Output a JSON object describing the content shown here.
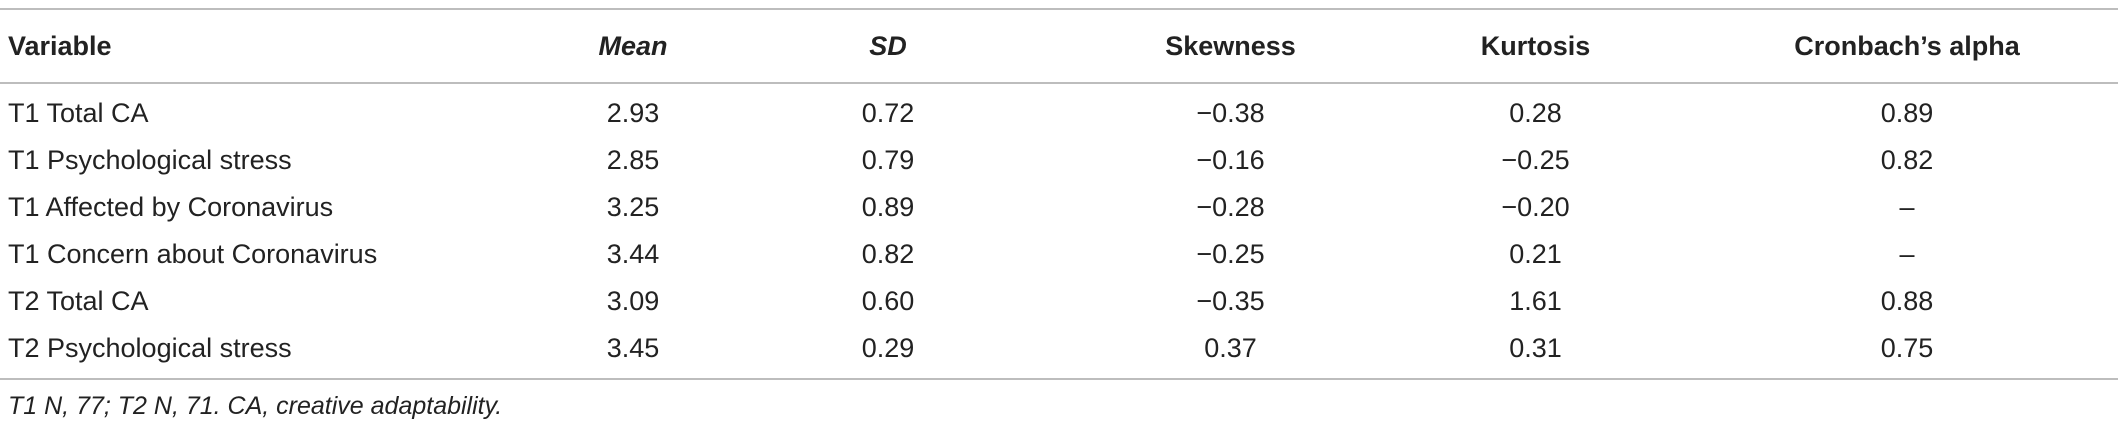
{
  "table": {
    "headers": {
      "variable": "Variable",
      "mean": "Mean",
      "sd": "SD",
      "skewness": "Skewness",
      "kurtosis": "Kurtosis",
      "alpha": "Cronbach’s alpha"
    },
    "rows": [
      {
        "variable": "T1 Total CA",
        "mean": "2.93",
        "sd": "0.72",
        "skewness": "−0.38",
        "kurtosis": "0.28",
        "alpha": "0.89"
      },
      {
        "variable": "T1 Psychological stress",
        "mean": "2.85",
        "sd": "0.79",
        "skewness": "−0.16",
        "kurtosis": "−0.25",
        "alpha": "0.82"
      },
      {
        "variable": "T1 Affected by Coronavirus",
        "mean": "3.25",
        "sd": "0.89",
        "skewness": "−0.28",
        "kurtosis": "−0.20",
        "alpha": "–"
      },
      {
        "variable": "T1 Concern about Coronavirus",
        "mean": "3.44",
        "sd": "0.82",
        "skewness": "−0.25",
        "kurtosis": "0.21",
        "alpha": "–"
      },
      {
        "variable": "T2 Total CA",
        "mean": "3.09",
        "sd": "0.60",
        "skewness": "−0.35",
        "kurtosis": "1.61",
        "alpha": "0.88"
      },
      {
        "variable": "T2 Psychological stress",
        "mean": "3.45",
        "sd": "0.29",
        "skewness": "0.37",
        "kurtosis": "0.31",
        "alpha": "0.75"
      }
    ],
    "note": "T1 N, 77; T2 N, 71. CA, creative adaptability."
  }
}
